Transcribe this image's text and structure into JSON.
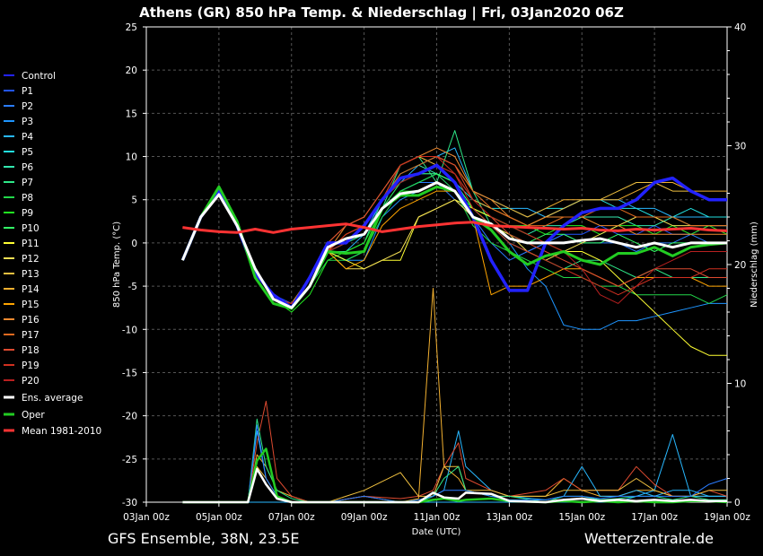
{
  "chart_data": {
    "type": "line",
    "title": "Athens  (GR)  850 hPa Temp. & Niederschlag | Fri, 03Jan2020 06Z",
    "xlabel": "Date (UTC)",
    "ylabel": "850 hPa Temp. (°C)",
    "y2label": "Niederschlag (mm)",
    "footer_left": "GFS Ensemble, 38N, 23.5E",
    "footer_right": "Wetterzentrale.de",
    "x_ticks": [
      "03Jan 00z",
      "05Jan 00z",
      "07Jan 00z",
      "09Jan 00z",
      "11Jan 00z",
      "13Jan 00z",
      "15Jan 00z",
      "17Jan 00z",
      "19Jan 00z"
    ],
    "xlim_days": [
      0,
      16
    ],
    "ylim": [
      -30,
      25
    ],
    "y_ticks": [
      25,
      20,
      15,
      10,
      5,
      0,
      -5,
      -10,
      -15,
      -20,
      -25,
      -30
    ],
    "y2lim": [
      0,
      40
    ],
    "y2_ticks": [
      40,
      30,
      20,
      10,
      0
    ],
    "grid": true,
    "legend_position": "left",
    "colors": {
      "Control": "#2222ff",
      "P1": "#2255ff",
      "P2": "#2a7cff",
      "P3": "#1e95ff",
      "P4": "#28b8ff",
      "P5": "#22e0e0",
      "P6": "#33e8b0",
      "P7": "#2ee888",
      "P8": "#22d84a",
      "P9": "#22ee22",
      "P10": "#33ff66",
      "P11": "#ffff33",
      "P12": "#f5e055",
      "P13": "#f0c040",
      "P14": "#f2b030",
      "P15": "#ffa500",
      "P16": "#f08a30",
      "P17": "#e06a20",
      "P18": "#dd4a30",
      "P19": "#d03020",
      "P20": "#b82020",
      "Ens. average": "#ffffff",
      "Oper": "#22cc22",
      "Mean 1981-2010": "#ff3333"
    },
    "legend": [
      "Control",
      "P1",
      "P2",
      "P3",
      "P4",
      "P5",
      "P6",
      "P7",
      "P8",
      "P9",
      "P10",
      "P11",
      "P12",
      "P13",
      "P14",
      "P15",
      "P16",
      "P17",
      "P18",
      "P19",
      "P20",
      "Ens. average",
      "Oper",
      "Mean 1981-2010"
    ],
    "temp_x": [
      1,
      1.5,
      2,
      2.5,
      3,
      3.5,
      4,
      4.5,
      5,
      5.5,
      6,
      6.5,
      7,
      7.5,
      8,
      8.5,
      9,
      9.5,
      10,
      10.5,
      11,
      11.5,
      12,
      12.5,
      13,
      13.5,
      14,
      14.5,
      15,
      15.5,
      16
    ],
    "mean_climate": [
      1.8,
      1.5,
      1.3,
      1.2,
      1.6,
      1.2,
      1.6,
      1.8,
      2.0,
      2.2,
      1.8,
      1.3,
      1.6,
      1.9,
      2.1,
      2.3,
      2.4,
      2.0,
      1.9,
      1.8,
      1.7,
      1.6,
      1.7,
      1.5,
      1.4,
      1.6,
      1.5,
      1.6,
      1.7,
      1.5,
      1.4
    ],
    "ens_average": [
      -2,
      3,
      5.6,
      2,
      -3,
      -6.5,
      -7.5,
      -5,
      -0.5,
      0.5,
      1,
      4,
      5.7,
      6,
      7,
      6,
      3,
      2.2,
      0.5,
      0,
      0,
      0,
      0.3,
      0.5,
      0,
      -0.5,
      0,
      -0.5,
      0,
      0,
      0
    ],
    "oper": [
      -2,
      3,
      6.5,
      2.5,
      -4,
      -7,
      -7.6,
      -5,
      -1,
      -1.2,
      -1,
      4,
      5.5,
      5.5,
      6.5,
      6,
      3,
      1.5,
      -1,
      -2.5,
      -1.5,
      -1,
      -2,
      -2.5,
      -1.2,
      -1.2,
      -0.5,
      -1.5,
      -0.5,
      -0.2,
      0
    ],
    "control": [
      -2,
      3,
      6,
      2,
      -3.5,
      -6,
      -7.5,
      -4,
      0,
      0,
      2,
      5,
      7.5,
      8,
      9,
      7,
      3,
      -2,
      -5.5,
      -5.5,
      0,
      2,
      3.5,
      4,
      4,
      5,
      7,
      7.5,
      6,
      5,
      5
    ],
    "members": [
      {
        "name": "P1",
        "values": [
          -2,
          3,
          5.5,
          2,
          -3,
          -6,
          -7,
          -4,
          0,
          0,
          1,
          5,
          7,
          8,
          8,
          6,
          3,
          2,
          0,
          -1,
          0,
          1,
          1,
          2,
          1,
          1,
          2,
          1,
          1,
          2,
          2
        ]
      },
      {
        "name": "P2",
        "values": [
          -2,
          3,
          5.5,
          2,
          -3,
          -6.5,
          -7.5,
          -5,
          -1,
          0,
          1,
          4,
          6,
          7,
          7,
          5,
          3,
          0,
          -2,
          -1,
          0,
          1,
          0,
          0,
          0,
          -1,
          0,
          0,
          1,
          0,
          0
        ]
      },
      {
        "name": "P3",
        "values": [
          -2,
          3,
          5.5,
          2,
          -3,
          -6.5,
          -7.5,
          -5,
          -1,
          -2,
          -2,
          3,
          5,
          6,
          7,
          6,
          4,
          2,
          0,
          -3,
          -5,
          -9.5,
          -10,
          -10,
          -9,
          -9,
          -8.5,
          -8,
          -7.5,
          -7,
          -7
        ]
      },
      {
        "name": "P4",
        "values": [
          -2,
          3,
          5.5,
          2,
          -3,
          -6.5,
          -7.5,
          -5,
          -1,
          -1,
          1,
          5,
          7,
          9,
          10,
          11,
          6,
          5,
          4,
          4,
          3,
          4,
          5,
          5,
          5,
          4,
          4,
          3,
          3,
          3,
          3
        ]
      },
      {
        "name": "P5",
        "values": [
          -2,
          3,
          5.5,
          2,
          -3,
          -6.5,
          -7.5,
          -5,
          -1,
          -2,
          -1,
          4,
          6,
          7,
          8,
          7,
          5,
          4,
          4,
          3,
          4,
          4,
          5,
          5,
          4,
          4,
          3,
          3,
          4,
          3,
          3
        ]
      },
      {
        "name": "P6",
        "values": [
          -2,
          3,
          5.5,
          2,
          -3,
          -6.5,
          -7.5,
          -5,
          -1,
          -1,
          0,
          5,
          8,
          9,
          8,
          7,
          4,
          3,
          2,
          1,
          2,
          2,
          3,
          3,
          3,
          2,
          2,
          3,
          2,
          2,
          2
        ]
      },
      {
        "name": "P7",
        "values": [
          -2,
          3,
          5.5,
          2,
          -3,
          -6.5,
          -7.5,
          -5,
          -1,
          -2,
          -1,
          4,
          9,
          10,
          7,
          13,
          6,
          2,
          0,
          -1,
          -2,
          -3,
          -2,
          -2,
          -3,
          -4,
          -3,
          -4,
          -4,
          -4,
          -4
        ]
      },
      {
        "name": "P8",
        "values": [
          -2,
          3,
          5.5,
          2,
          -3,
          -6.5,
          -7.5,
          -5,
          -2,
          -2,
          -1,
          3,
          6,
          7,
          8,
          6,
          2,
          0,
          -1,
          -2,
          -3,
          -4,
          -4,
          -5,
          -5,
          -6,
          -6,
          -6,
          -6,
          -7,
          -6
        ]
      },
      {
        "name": "P9",
        "values": [
          -2,
          3,
          5.5,
          2,
          -3,
          -6.5,
          -8,
          -6,
          -2,
          -1,
          0,
          4,
          6,
          6,
          7,
          6,
          4,
          3,
          2,
          2,
          1,
          2,
          2,
          1,
          2,
          2,
          1,
          2,
          1,
          2,
          1
        ]
      },
      {
        "name": "P10",
        "values": [
          -2,
          3,
          5.5,
          2,
          -3,
          -6.5,
          -7.5,
          -5,
          -1,
          0,
          1,
          4,
          7,
          8,
          8,
          7,
          4,
          2,
          1,
          0,
          1,
          1,
          0,
          0,
          1,
          0,
          -1,
          0,
          0,
          0,
          0
        ]
      },
      {
        "name": "P11",
        "values": [
          -2,
          3,
          5.5,
          2,
          -3,
          -6.5,
          -7.5,
          -5,
          -1,
          -2,
          -3,
          -2,
          -2,
          3,
          4,
          5,
          4,
          3,
          2,
          1,
          0,
          -1,
          -1,
          -2,
          -4,
          -6,
          -8,
          -10,
          -12,
          -13,
          -13
        ]
      },
      {
        "name": "P12",
        "values": [
          -2,
          3,
          5.5,
          2,
          -3,
          -6.5,
          -7.5,
          -5,
          -1,
          -3,
          -3,
          -2,
          -1,
          3,
          4,
          5,
          3,
          2,
          1,
          -1,
          -2,
          -1,
          0,
          1,
          2,
          3,
          3,
          2,
          2,
          2,
          2
        ]
      },
      {
        "name": "P13",
        "values": [
          -2,
          3,
          5.5,
          2,
          -3,
          -6.5,
          -7.5,
          -5,
          -1,
          1,
          2,
          5,
          9,
          10,
          9,
          8,
          5,
          4,
          3,
          2,
          3,
          4,
          5,
          5,
          6,
          7,
          7,
          6,
          6,
          5,
          5
        ]
      },
      {
        "name": "P14",
        "values": [
          -2,
          3,
          5.5,
          2,
          -3,
          -6.5,
          -7,
          -4,
          0,
          2,
          3,
          6,
          9,
          10,
          10,
          9,
          6,
          5,
          4,
          3,
          4,
          5,
          5,
          5,
          5,
          6,
          7,
          7,
          6,
          6,
          6
        ]
      },
      {
        "name": "P15",
        "values": [
          -2,
          3,
          5.5,
          2,
          -3,
          -6.5,
          -7,
          -4,
          -1,
          -3,
          -2,
          2,
          4,
          5,
          6,
          6,
          3,
          -6,
          -5,
          -5,
          -4,
          -3,
          -3,
          -4,
          -5,
          -4,
          -4,
          -4,
          -4,
          -5,
          -5
        ]
      },
      {
        "name": "P16",
        "values": [
          -2,
          3,
          5.5,
          2,
          -3,
          -6.5,
          -7,
          -5,
          -1,
          2,
          3,
          6,
          9,
          10,
          11,
          10,
          6,
          5,
          3,
          2,
          3,
          3,
          3,
          2,
          2,
          1,
          1,
          1,
          1,
          1,
          1
        ]
      },
      {
        "name": "P17",
        "values": [
          -2,
          3,
          5.5,
          2,
          -3,
          -6.5,
          -7,
          -5,
          -1,
          1,
          2,
          5,
          8,
          9,
          10,
          9,
          6,
          4,
          3,
          2,
          2,
          3,
          3,
          4,
          4,
          3,
          3,
          3,
          2,
          2,
          2
        ]
      },
      {
        "name": "P18",
        "values": [
          -2,
          3,
          5.5,
          2,
          -3,
          -6.5,
          -7,
          -5,
          0,
          2,
          3,
          6,
          9,
          10,
          10,
          9,
          5,
          3,
          1,
          0,
          -1,
          -2,
          -3,
          -4,
          -5,
          -4,
          -3,
          -3,
          -3,
          -4,
          -4
        ]
      },
      {
        "name": "P19",
        "values": [
          -2,
          3,
          5.5,
          2,
          -3,
          -6.5,
          -7,
          -5,
          -1,
          1,
          2,
          5,
          9,
          10,
          10,
          8,
          4,
          2,
          0,
          -1,
          -2,
          -3,
          -4,
          -5,
          -6,
          -5,
          -4,
          -4,
          -4,
          -3,
          -3
        ]
      },
      {
        "name": "P20",
        "values": [
          -2,
          3,
          5.5,
          2,
          -3,
          -6.5,
          -7,
          -5,
          -1,
          0,
          2,
          5,
          7,
          8,
          9,
          8,
          5,
          3,
          2,
          1,
          0,
          -1,
          -3,
          -6,
          -7,
          -5,
          -3,
          -2,
          -1,
          -1,
          -1
        ]
      }
    ],
    "precip_x": [
      1,
      2,
      2.8,
      3.05,
      3.3,
      3.6,
      4,
      4.5,
      5,
      6,
      7,
      7.5,
      7.9,
      8.2,
      8.6,
      8.8,
      9.5,
      10,
      11,
      11.5,
      12,
      12.5,
      13,
      13.5,
      14,
      14.5,
      15,
      15.5,
      16
    ],
    "precip_avg": [
      0,
      0,
      0,
      2.8,
      1.5,
      0.3,
      0,
      0,
      0,
      0,
      0,
      0,
      0.8,
      0.4,
      0.3,
      0.8,
      0.7,
      0.1,
      0,
      0.2,
      0.3,
      0.1,
      0.2,
      0.1,
      0.2,
      0.1,
      0.2,
      0.1,
      0.1
    ],
    "precip_oper": [
      0,
      0,
      0,
      3.5,
      4.5,
      0.5,
      0,
      0,
      0,
      0,
      0,
      0,
      0.2,
      0.3,
      0.1,
      0.2,
      0.3,
      0.1,
      0,
      0.1,
      0,
      0.1,
      0,
      0.1,
      0,
      0,
      0.1,
      0.1,
      0
    ],
    "precip_members": [
      {
        "name": "P14",
        "values": [
          0,
          0,
          0,
          4,
          3,
          1,
          0.5,
          0,
          0,
          0.5,
          0,
          0.3,
          18,
          3,
          2,
          1,
          0.5,
          0.5,
          0.5,
          2,
          1,
          0.5,
          0.5,
          1,
          1,
          0.5,
          0.5,
          0.5,
          0.5
        ]
      },
      {
        "name": "P4",
        "values": [
          0,
          0,
          0,
          6,
          2,
          0.5,
          0,
          0,
          0,
          0,
          0,
          0,
          0.5,
          1,
          6,
          3,
          1,
          0.5,
          0.2,
          0.5,
          3,
          0.5,
          0.5,
          1,
          0.5,
          1,
          1,
          0.5,
          0.5
        ]
      },
      {
        "name": "P4b",
        "values": [
          0,
          0,
          0,
          0,
          0,
          0,
          0,
          0,
          0,
          0,
          0,
          0,
          0,
          0,
          0,
          0,
          0,
          0,
          0,
          0,
          0,
          0,
          0,
          0.5,
          1,
          5.7,
          0.5,
          0.5,
          0.5
        ]
      },
      {
        "name": "P18",
        "values": [
          0,
          0,
          0,
          5,
          8.5,
          2,
          0.5,
          0,
          0,
          0.5,
          0.3,
          0.5,
          1,
          3,
          5,
          2,
          1,
          0.5,
          1,
          2,
          1,
          1,
          1,
          3,
          1.5,
          0.5,
          0.5,
          1,
          0.5
        ]
      },
      {
        "name": "P13",
        "values": [
          0,
          0,
          0,
          3,
          2,
          0.5,
          0,
          0,
          0,
          1,
          2.5,
          0.5,
          0.5,
          3,
          3,
          1,
          1,
          0.5,
          0.5,
          1,
          1,
          1,
          1,
          2,
          1,
          0.5,
          0.5,
          1,
          1
        ]
      },
      {
        "name": "P7",
        "values": [
          0,
          0,
          0,
          7,
          3,
          1,
          0.3,
          0,
          0,
          0,
          0,
          0,
          0.5,
          2,
          3,
          1,
          0.5,
          0.5,
          0,
          0.5,
          0.5,
          0.2,
          0.3,
          0.5,
          0.5,
          0.2,
          0.5,
          0.2,
          0.2
        ]
      },
      {
        "name": "P2",
        "values": [
          0,
          0,
          0,
          6.5,
          2,
          0.5,
          0,
          0,
          0,
          0.5,
          0,
          0.2,
          0.5,
          1,
          1,
          1,
          0.5,
          0.2,
          0.2,
          0.5,
          0.5,
          0.3,
          0.5,
          0.5,
          0.5,
          0.5,
          0.5,
          1.5,
          2
        ]
      }
    ]
  }
}
